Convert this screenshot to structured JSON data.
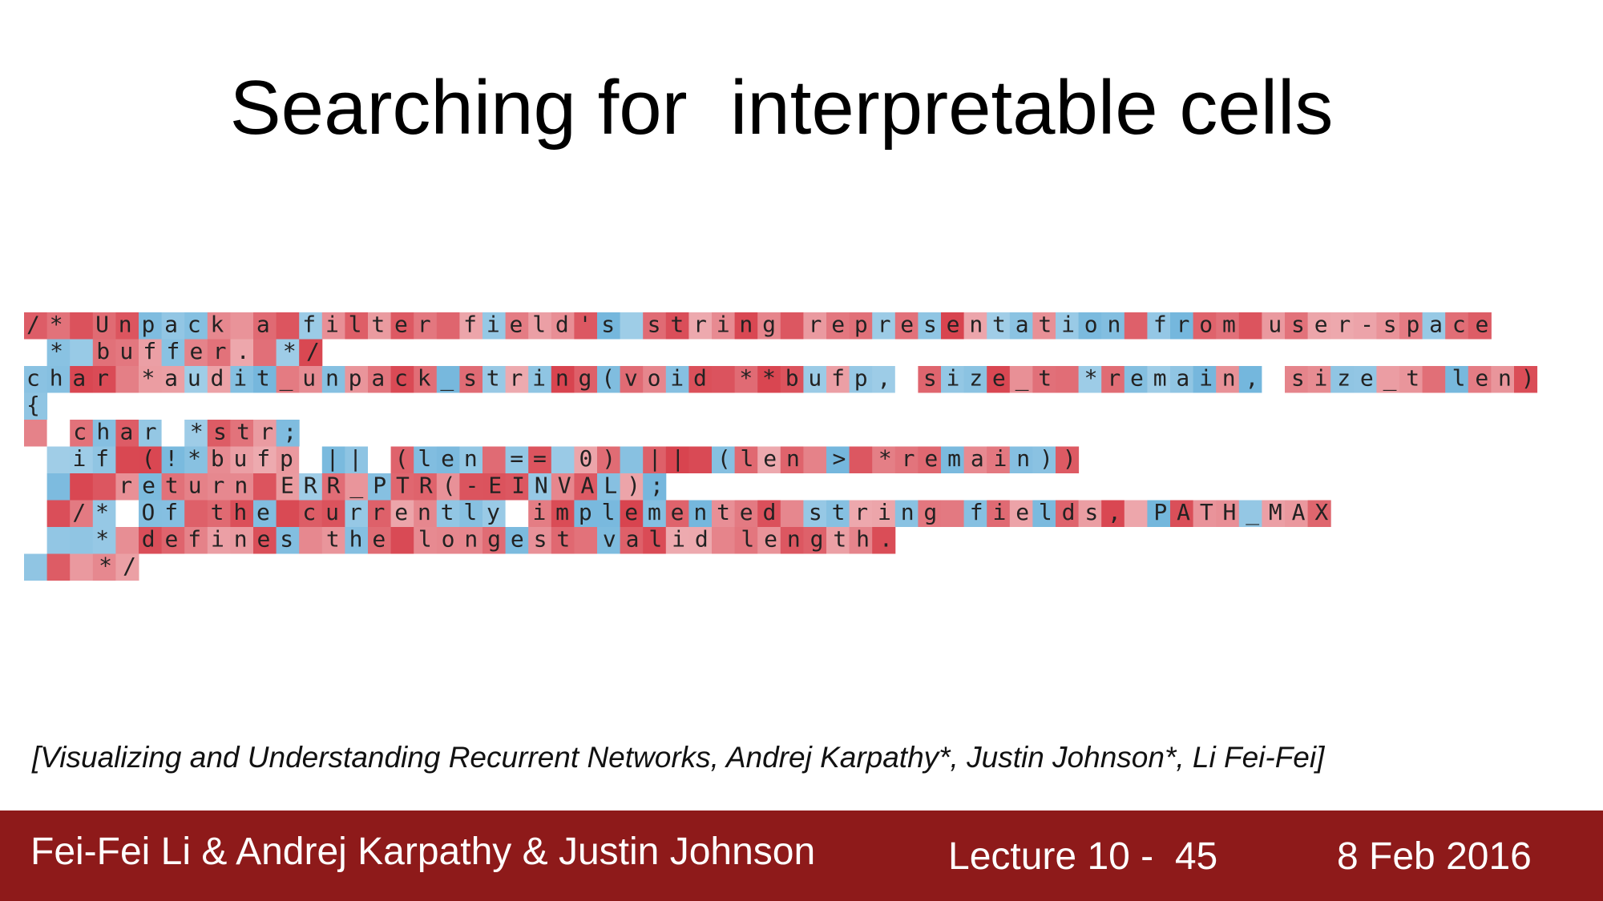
{
  "slide": {
    "title": "Searching for  interpretable cells",
    "citation": "[Visualizing and Understanding Recurrent Networks, Andrej Karpathy*, Justin Johnson*, Li Fei-Fei]"
  },
  "code_visualization": {
    "colors": {
      "positive": "#d8434e",
      "negative": "#5aa9d6",
      "neutral": "#ffffff"
    },
    "lines": [
      "/* Unpack a filter field's string representation from user-space",
      " * buffer. */",
      "char *audit_unpack_string(void **bufp, size_t *remain, size_t len)",
      "{",
      "  char *str;",
      "  if (!*bufp || (len == 0) || (len > *remain))",
      "    return ERR_PTR(-EINVAL);",
      "  /* Of the currently implemented string fields, PATH_MAX",
      "   * defines the longest valid length.",
      "   */"
    ]
  },
  "footer": {
    "authors": "Fei-Fei Li & Andrej Karpathy & Justin Johnson",
    "lecture": "Lecture 10 -  45",
    "date": "8 Feb 2016",
    "background": "#8e1a1a"
  }
}
